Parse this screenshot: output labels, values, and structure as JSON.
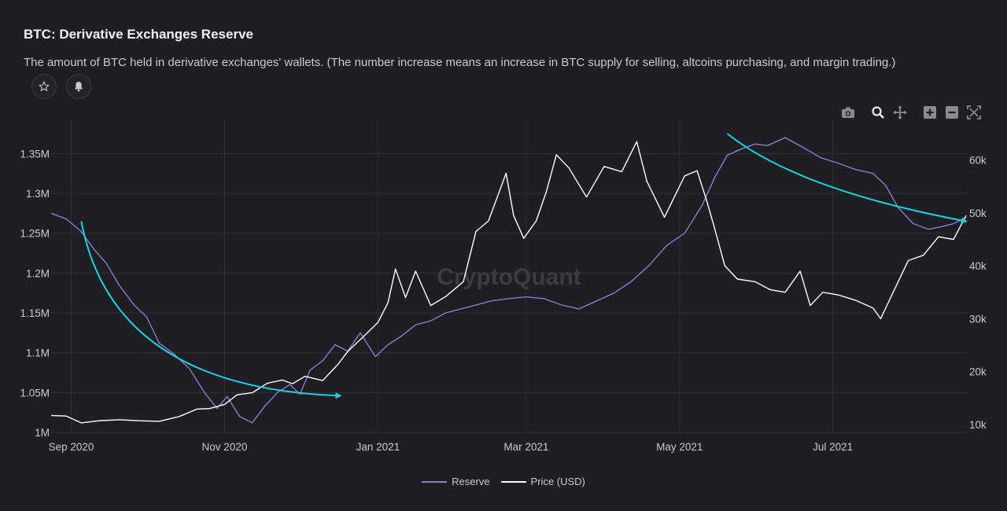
{
  "header": {
    "title": "BTC: Derivative Exchanges Reserve",
    "subtitle": "The amount of BTC held in derivative exchanges' wallets. (The number increase means an increase in BTC supply for selling, altcoins purchasing, and margin trading.)"
  },
  "actions": {
    "favorite_icon": "star-icon",
    "alert_icon": "bell-icon"
  },
  "toolbar": {
    "icons": [
      "camera-icon",
      "zoom-icon",
      "pan-icon",
      "zoom-in-icon",
      "zoom-out-icon",
      "reset-axes-icon"
    ]
  },
  "watermark": "CryptoQuant",
  "colors": {
    "background": "#1e1e23",
    "reserve": "#8b7ad6",
    "price": "#ffffff",
    "trend": "#19d3e0",
    "grid": "#2f2f36"
  },
  "legend": [
    {
      "name": "Reserve",
      "color": "#8b7ad6"
    },
    {
      "name": "Price (USD)",
      "color": "#ffffff"
    }
  ],
  "chart_data": {
    "type": "line",
    "x_ticks": [
      "Sep 2020",
      "Nov 2020",
      "Jan 2021",
      "Mar 2021",
      "May 2021",
      "Jul 2021"
    ],
    "x_tick_dates": [
      "2020-09-01",
      "2020-11-01",
      "2021-01-01",
      "2021-03-01",
      "2021-05-01",
      "2021-07-01"
    ],
    "x_range": [
      "2020-08-24",
      "2021-08-23"
    ],
    "y_left": {
      "ticks": [
        "1M",
        "1.05M",
        "1.1M",
        "1.15M",
        "1.2M",
        "1.25M",
        "1.3M",
        "1.35M"
      ],
      "tick_values": [
        1000000,
        1050000,
        1100000,
        1150000,
        1200000,
        1250000,
        1300000,
        1350000
      ],
      "range": [
        1000000,
        1375000
      ]
    },
    "y_right": {
      "ticks": [
        "10k",
        "20k",
        "30k",
        "40k",
        "50k",
        "60k"
      ],
      "tick_values": [
        10000,
        20000,
        30000,
        40000,
        50000,
        60000
      ],
      "range": [
        8500,
        65000
      ]
    },
    "grid": true,
    "legend_position": "bottom",
    "series": [
      {
        "name": "Reserve",
        "axis": "left",
        "x": [
          "2020-08-24",
          "2020-08-30",
          "2020-09-05",
          "2020-09-10",
          "2020-09-15",
          "2020-09-20",
          "2020-09-26",
          "2020-10-01",
          "2020-10-06",
          "2020-10-12",
          "2020-10-18",
          "2020-10-24",
          "2020-10-29",
          "2020-11-02",
          "2020-11-07",
          "2020-11-12",
          "2020-11-17",
          "2020-11-22",
          "2020-11-27",
          "2020-12-01",
          "2020-12-05",
          "2020-12-10",
          "2020-12-15",
          "2020-12-20",
          "2020-12-25",
          "2020-12-31",
          "2021-01-05",
          "2021-01-10",
          "2021-01-16",
          "2021-01-22",
          "2021-01-28",
          "2021-02-03",
          "2021-02-09",
          "2021-02-15",
          "2021-02-22",
          "2021-03-01",
          "2021-03-08",
          "2021-03-15",
          "2021-03-22",
          "2021-03-29",
          "2021-04-05",
          "2021-04-12",
          "2021-04-19",
          "2021-04-26",
          "2021-05-03",
          "2021-05-10",
          "2021-05-15",
          "2021-05-20",
          "2021-05-25",
          "2021-05-31",
          "2021-06-05",
          "2021-06-12",
          "2021-06-19",
          "2021-06-26",
          "2021-07-03",
          "2021-07-10",
          "2021-07-17",
          "2021-07-22",
          "2021-07-27",
          "2021-08-02",
          "2021-08-08",
          "2021-08-13",
          "2021-08-18",
          "2021-08-23"
        ],
        "values": [
          1275000,
          1268000,
          1252000,
          1230000,
          1212000,
          1185000,
          1160000,
          1145000,
          1112000,
          1098000,
          1080000,
          1050000,
          1030000,
          1045000,
          1020000,
          1012000,
          1033000,
          1050000,
          1060000,
          1048000,
          1078000,
          1090000,
          1110000,
          1102000,
          1125000,
          1095000,
          1110000,
          1120000,
          1135000,
          1140000,
          1150000,
          1155000,
          1160000,
          1165000,
          1168000,
          1170000,
          1168000,
          1160000,
          1155000,
          1165000,
          1175000,
          1190000,
          1210000,
          1235000,
          1250000,
          1285000,
          1320000,
          1348000,
          1355000,
          1362000,
          1360000,
          1370000,
          1358000,
          1345000,
          1338000,
          1330000,
          1325000,
          1310000,
          1282000,
          1262000,
          1255000,
          1258000,
          1262000,
          1270000
        ]
      },
      {
        "name": "Price (USD)",
        "axis": "right",
        "x": [
          "2020-08-24",
          "2020-08-30",
          "2020-09-05",
          "2020-09-12",
          "2020-09-20",
          "2020-09-28",
          "2020-10-06",
          "2020-10-14",
          "2020-10-21",
          "2020-10-26",
          "2020-11-01",
          "2020-11-06",
          "2020-11-12",
          "2020-11-18",
          "2020-11-24",
          "2020-11-28",
          "2020-12-03",
          "2020-12-10",
          "2020-12-16",
          "2020-12-20",
          "2020-12-26",
          "2021-01-01",
          "2021-01-05",
          "2021-01-08",
          "2021-01-12",
          "2021-01-16",
          "2021-01-22",
          "2021-01-28",
          "2021-02-04",
          "2021-02-09",
          "2021-02-14",
          "2021-02-21",
          "2021-02-24",
          "2021-02-28",
          "2021-03-05",
          "2021-03-09",
          "2021-03-13",
          "2021-03-18",
          "2021-03-25",
          "2021-04-01",
          "2021-04-08",
          "2021-04-14",
          "2021-04-18",
          "2021-04-25",
          "2021-05-03",
          "2021-05-08",
          "2021-05-12",
          "2021-05-15",
          "2021-05-19",
          "2021-05-24",
          "2021-05-31",
          "2021-06-06",
          "2021-06-12",
          "2021-06-18",
          "2021-06-22",
          "2021-06-27",
          "2021-07-03",
          "2021-07-10",
          "2021-07-17",
          "2021-07-20",
          "2021-07-26",
          "2021-07-31",
          "2021-08-06",
          "2021-08-12",
          "2021-08-18",
          "2021-08-23"
        ],
        "values": [
          11700,
          11600,
          10300,
          10700,
          10900,
          10700,
          10600,
          11500,
          12900,
          13000,
          13800,
          15600,
          16000,
          17800,
          18400,
          17700,
          19100,
          18300,
          21300,
          23800,
          26500,
          29300,
          33000,
          39400,
          34000,
          39000,
          32500,
          34200,
          37000,
          46500,
          48500,
          57500,
          49500,
          45200,
          48500,
          54000,
          61000,
          58500,
          53000,
          58800,
          57800,
          63500,
          56000,
          49200,
          57000,
          58000,
          52000,
          47000,
          40000,
          37500,
          37000,
          35500,
          35000,
          39000,
          32500,
          35000,
          34500,
          33500,
          32000,
          30000,
          36000,
          41000,
          42000,
          45500,
          45000,
          49500
        ]
      }
    ],
    "annotations": [
      {
        "type": "trend-arrow",
        "color": "#19d3e0",
        "from": [
          "2020-09-05",
          1265000
        ],
        "to": [
          "2020-12-17",
          1046000
        ]
      },
      {
        "type": "trend-arrow",
        "color": "#19d3e0",
        "from": [
          "2021-05-20",
          1375000
        ],
        "to": [
          "2021-08-23",
          1265000
        ]
      }
    ]
  }
}
